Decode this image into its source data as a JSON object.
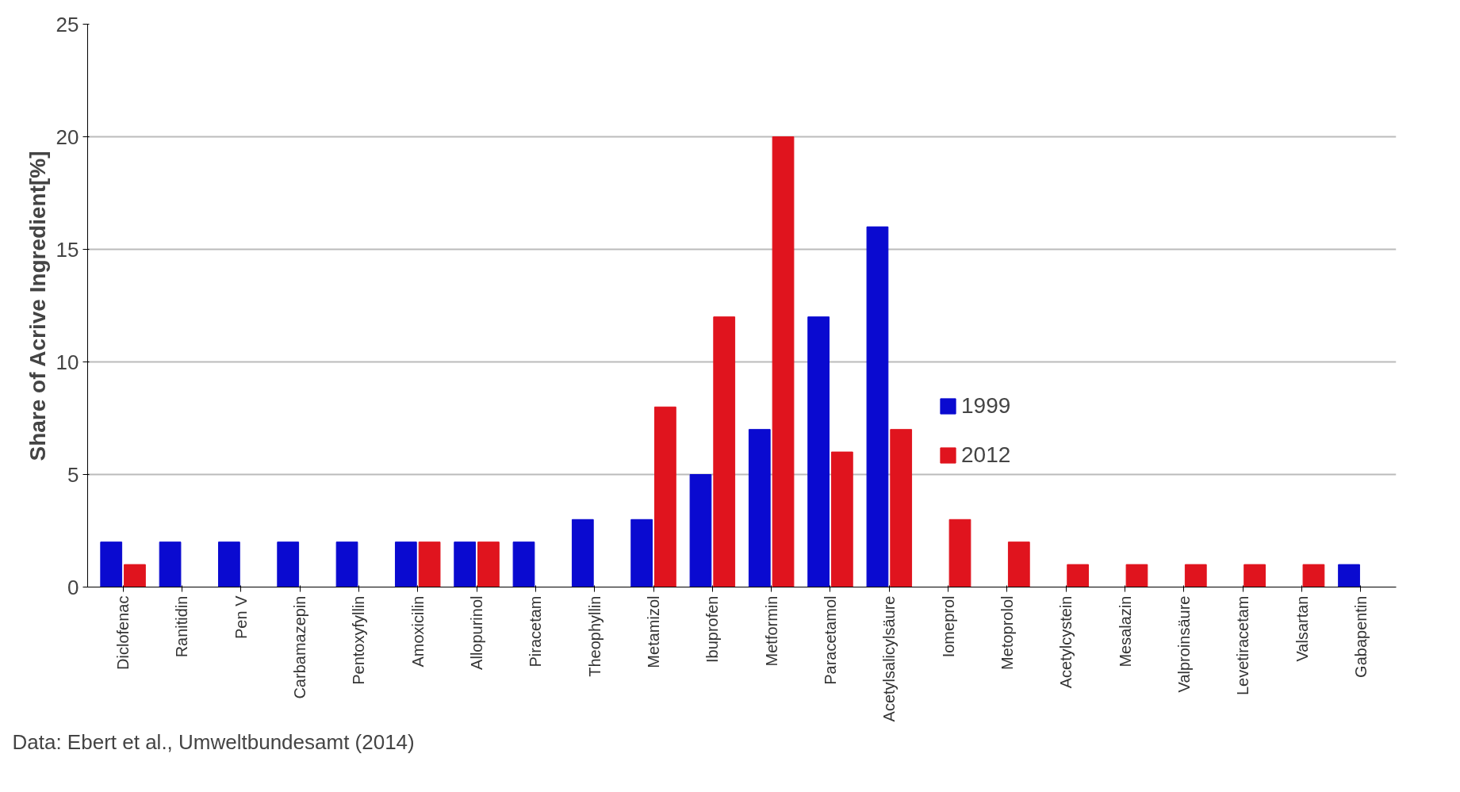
{
  "chart_data": {
    "type": "bar",
    "ylabel": "Share of Acrive Ingredient[%]",
    "categories": [
      "Diclofenac",
      "Ranitidin",
      "Pen V",
      "Carbamazepin",
      "Pentoxyfyllin",
      "Amoxicilin",
      "Allopurinol",
      "Piracetam",
      "Theophyllin",
      "Metamizol",
      "Ibuprofen",
      "Metformin",
      "Paracetamol",
      "Acetylsalicylsäure",
      "Iomeprol",
      "Metoprolol",
      "Acetylcystein",
      "Mesalazin",
      "Valproinsäure",
      "Levetiracetam",
      "Valsartan",
      "Gabapentin"
    ],
    "series": [
      {
        "name": "1999",
        "color": "#0a0ad0",
        "values": [
          2,
          2,
          2,
          2,
          2,
          2,
          2,
          2,
          3,
          3,
          5,
          7,
          12,
          16,
          null,
          null,
          null,
          null,
          null,
          null,
          null,
          1
        ]
      },
      {
        "name": "2012",
        "color": "#e0141e",
        "values": [
          1,
          null,
          null,
          null,
          null,
          2,
          2,
          null,
          null,
          8,
          12,
          20,
          6,
          7,
          3,
          2,
          1,
          1,
          1,
          1,
          1,
          null
        ]
      }
    ],
    "ylim": [
      0,
      25
    ],
    "yticks": [
      0,
      5,
      10,
      15,
      20,
      25
    ],
    "grid": "y",
    "legend": "right",
    "annotations": [
      "Data: Ebert et al., Umweltbundesamt (2014)"
    ]
  }
}
